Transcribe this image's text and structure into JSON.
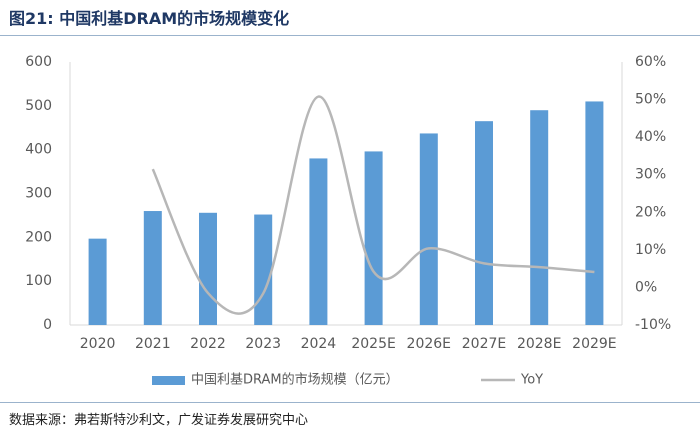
{
  "figure": {
    "label": "图21:",
    "title": "中国利基DRAM的市场规模变化",
    "source": "数据来源：弗若斯特沙利文，广发证券发展研究中心"
  },
  "colors": {
    "bar": "#5b9bd5",
    "line": "#b7b7b7",
    "axis": "#d9d9d9",
    "text": "#595959",
    "title": "#1f3864"
  },
  "chart_data": {
    "type": "bar",
    "title": "",
    "categories": [
      "2020",
      "2021",
      "2022",
      "2023",
      "2024",
      "2025E",
      "2026E",
      "2027E",
      "2028E",
      "2029E"
    ],
    "series": [
      {
        "name": "中国利基DRAM的市场规模（亿元）",
        "type": "bar",
        "axis": "left",
        "values": [
          197,
          260,
          256,
          252,
          380,
          396,
          437,
          465,
          490,
          510
        ]
      },
      {
        "name": "YoY",
        "type": "line",
        "axis": "right",
        "values": [
          null,
          31.5,
          -1.5,
          -1.6,
          50.8,
          4.2,
          10.4,
          6.4,
          5.4,
          4.1
        ]
      }
    ],
    "left_axis": {
      "min": 0,
      "max": 600,
      "step": 100,
      "ticks": [
        "0",
        "100",
        "200",
        "300",
        "400",
        "500",
        "600"
      ]
    },
    "right_axis": {
      "min": -10,
      "max": 60,
      "step": 10,
      "ticks": [
        "-10%",
        "0%",
        "10%",
        "20%",
        "30%",
        "40%",
        "50%",
        "60%"
      ]
    },
    "legend_position": "bottom",
    "grid": false
  }
}
